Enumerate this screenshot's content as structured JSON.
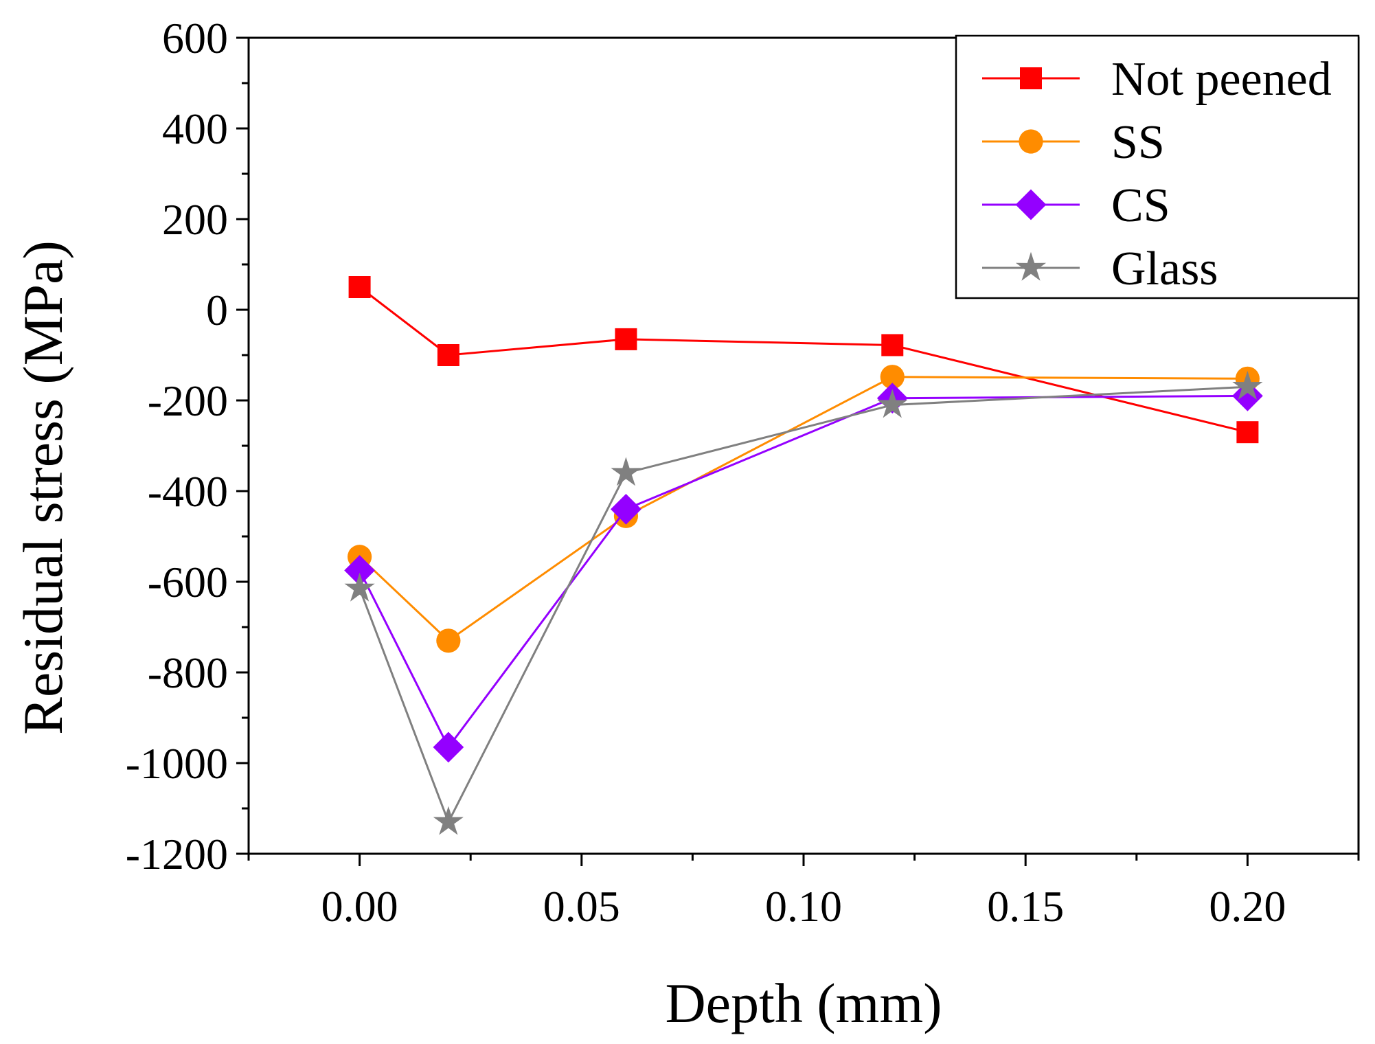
{
  "chart_data": {
    "type": "line",
    "title": "",
    "xlabel": "Depth (mm)",
    "ylabel": "Residual stress (MPa)",
    "xlim": [
      -0.025,
      0.225
    ],
    "ylim": [
      -1200,
      600
    ],
    "xticks": [
      0.0,
      0.05,
      0.1,
      0.15,
      0.2
    ],
    "xtick_labels": [
      "0.00",
      "0.05",
      "0.10",
      "0.15",
      "0.20"
    ],
    "yticks": [
      -1200,
      -1000,
      -800,
      -600,
      -400,
      -200,
      0,
      200,
      400,
      600
    ],
    "ytick_labels": [
      "-1200",
      "-1000",
      "-800",
      "-600",
      "-400",
      "-200",
      "0",
      "200",
      "400",
      "600"
    ],
    "grid": false,
    "legend_position": "top-right",
    "x": [
      0.0,
      0.02,
      0.06,
      0.12,
      0.2
    ],
    "series": [
      {
        "name": "Not peened",
        "color": "#ff0000",
        "marker": "square",
        "values": [
          50,
          -100,
          -65,
          -78,
          -270
        ]
      },
      {
        "name": "SS",
        "color": "#ff8c00",
        "marker": "circle",
        "values": [
          -545,
          -730,
          -455,
          -148,
          -152
        ]
      },
      {
        "name": "CS",
        "color": "#9400ff",
        "marker": "diamond",
        "values": [
          -575,
          -965,
          -440,
          -195,
          -190
        ]
      },
      {
        "name": "Glass",
        "color": "#808080",
        "marker": "star",
        "values": [
          -615,
          -1130,
          -360,
          -210,
          -170
        ]
      }
    ]
  }
}
